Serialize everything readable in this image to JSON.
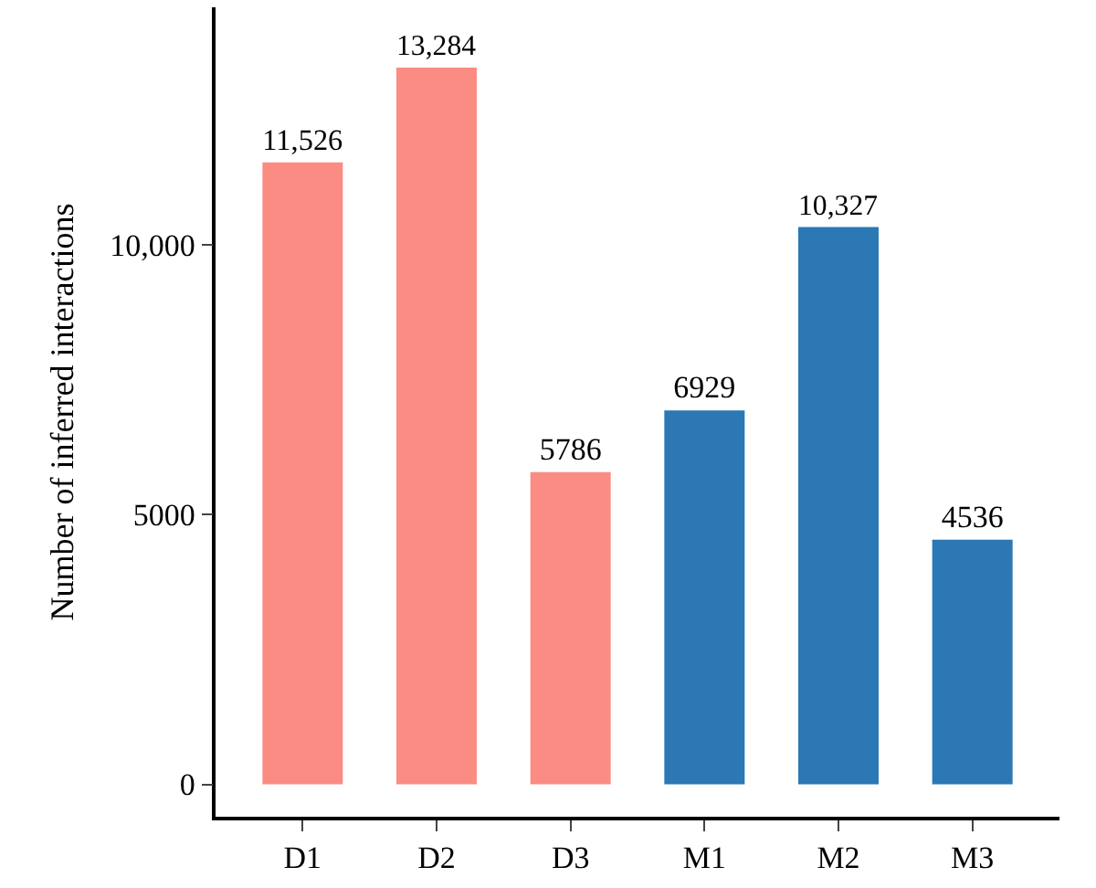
{
  "chart_data": {
    "type": "bar",
    "ylabel": "Number of inferred interactions",
    "categories": [
      "D1",
      "D2",
      "D3",
      "M1",
      "M2",
      "M3"
    ],
    "values": [
      11526,
      13284,
      5786,
      6929,
      10327,
      4536
    ],
    "colors": [
      "#fa8c84",
      "#fa8c84",
      "#fa8c84",
      "#2b78b4",
      "#2b78b4",
      "#2b78b4"
    ],
    "value_labels": [
      "11,526",
      "13,284",
      "5786",
      "6929",
      "10,327",
      "4536"
    ],
    "ylim": [
      -600,
      14400
    ],
    "yticks": [
      0,
      5000,
      {
        "value": 10000,
        "label": "10,000"
      }
    ]
  }
}
